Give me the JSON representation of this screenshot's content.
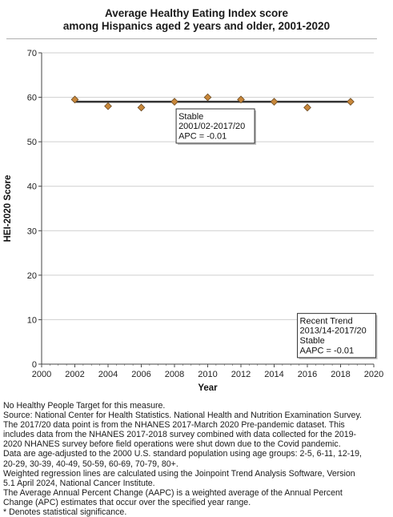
{
  "chart_data": {
    "type": "scatter",
    "title": [
      "Average Healthy Eating Index score",
      "among Hispanics aged 2 years and older, 2001-2020"
    ],
    "xlabel": "Year",
    "ylabel": "HEI-2020 Score",
    "xlim": [
      2000,
      2020
    ],
    "ylim": [
      0,
      70
    ],
    "xticks": [
      2000,
      2002,
      2004,
      2006,
      2008,
      2010,
      2012,
      2014,
      2016,
      2018,
      2020
    ],
    "yticks": [
      0,
      10,
      20,
      30,
      40,
      50,
      60,
      70
    ],
    "grid": "horizontal",
    "series": [
      {
        "color": "#c8873a",
        "x": [
          2002,
          2004,
          2006,
          2008,
          2010,
          2012,
          2014,
          2016,
          2018.6
        ],
        "y": [
          59.5,
          58.0,
          57.7,
          59.0,
          60.0,
          59.5,
          59.0,
          57.7,
          59.0
        ]
      }
    ],
    "trend_line": {
      "x": [
        2002,
        2018.6
      ],
      "y": [
        59.0,
        59.0
      ],
      "color": "#333333"
    },
    "annotations": [
      {
        "lines": [
          "Stable",
          "2001/02-2017/20",
          "APC = -0.01"
        ],
        "anchor_x": 2008.1,
        "anchor_y": 57.4
      },
      {
        "lines": [
          "Recent Trend",
          "2013/14-2017/20",
          "Stable",
          "AAPC = -0.01"
        ],
        "anchor_x": 2015.4,
        "anchor_y": 11.4
      }
    ]
  },
  "notes": [
    "No Healthy People Target for this measure.",
    "Source: National Center for Health Statistics. National Health and Nutrition Examination Survey.",
    "The 2017/20 data point is from the NHANES 2017-March 2020 Pre-pandemic dataset. This",
    "includes data from the NHANES 2017-2018 survey combined with data collected for the 2019-",
    "2020 NHANES survey before field operations were shut down due to the Covid pandemic.",
    "Data are age-adjusted to the 2000 U.S. standard population using age groups: 2-5, 6-11, 12-19,",
    "20-29, 30-39, 40-49, 50-59, 60-69, 70-79, 80+.",
    "Weighted regression lines are calculated using the Joinpoint Trend Analysis Software, Version",
    "5.1 April 2024, National Cancer Institute.",
    "The Average Annual Percent Change (AAPC) is a weighted average of the Annual Percent",
    "Change (APC) estimates that occur over the specified year range.",
    "* Denotes statistical significance."
  ]
}
